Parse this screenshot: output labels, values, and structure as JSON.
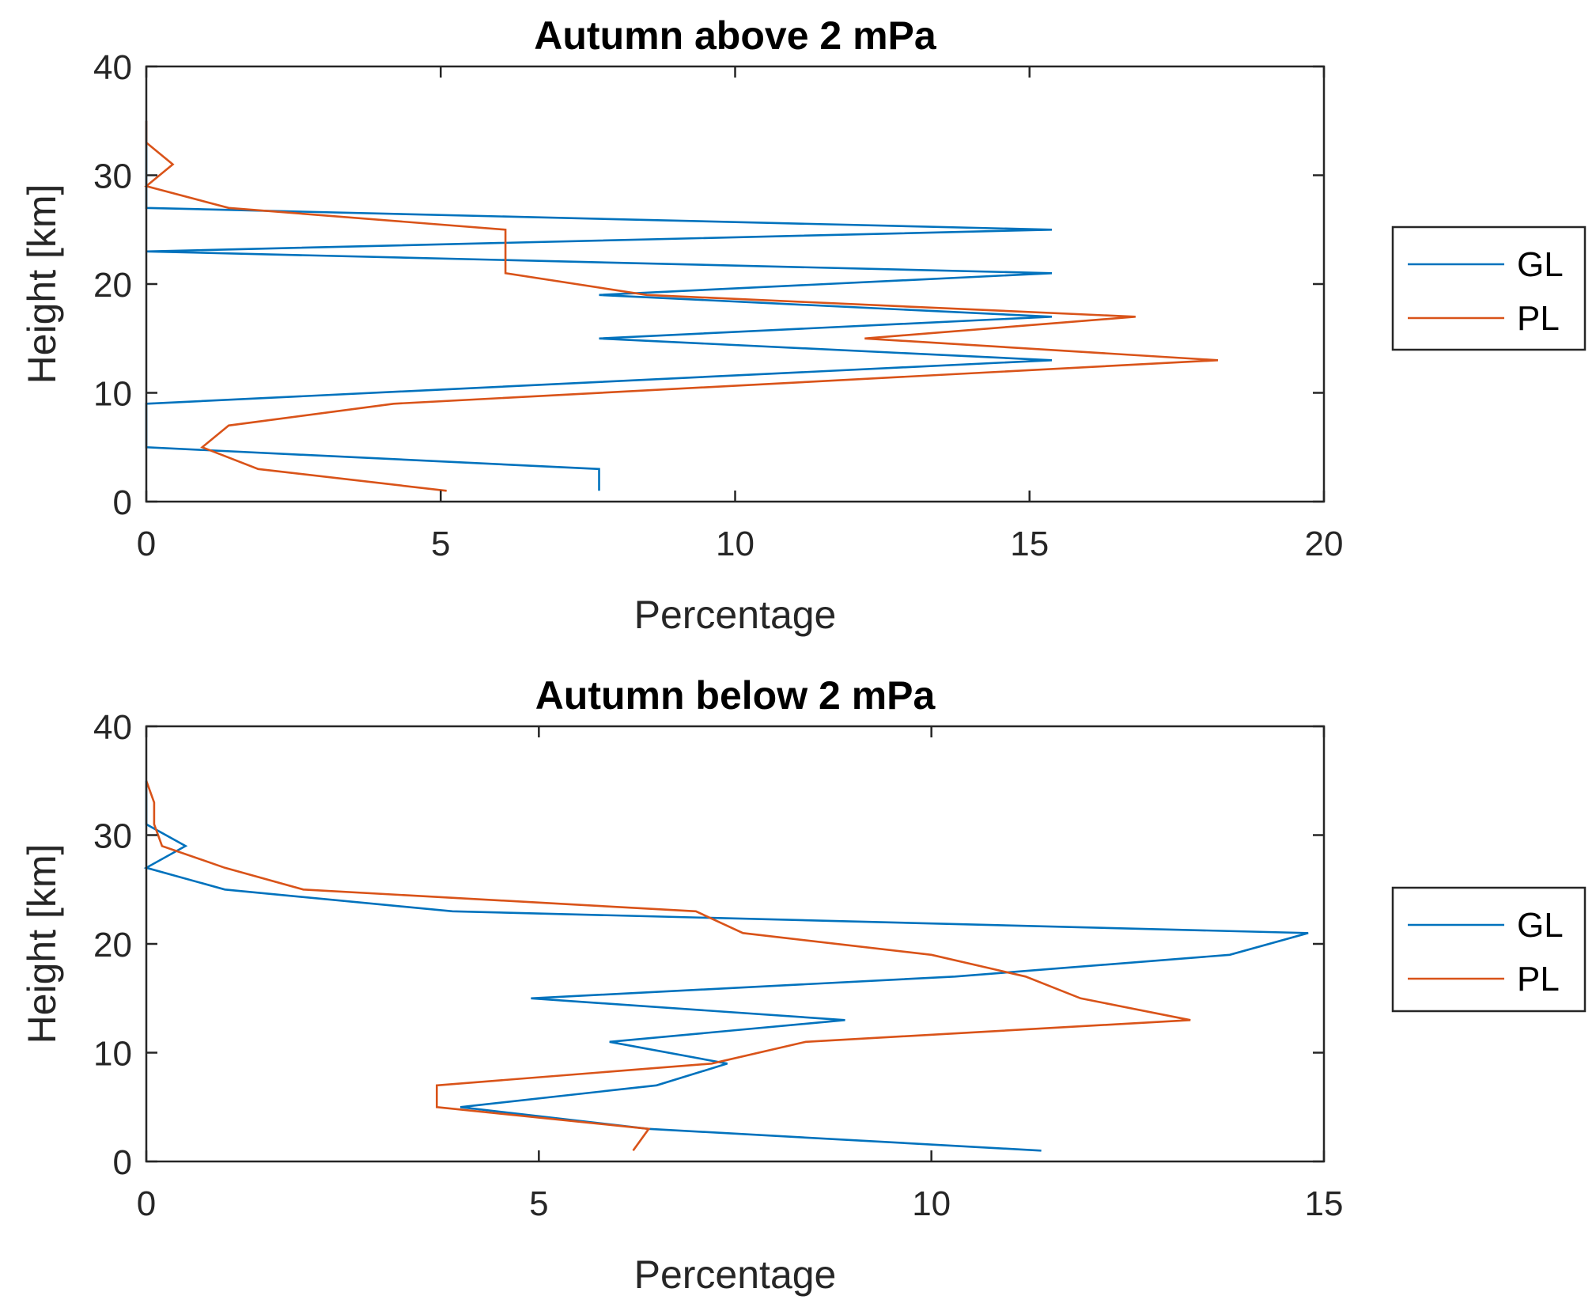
{
  "chart_data": [
    {
      "type": "line",
      "title": "Autumn above 2 mPa",
      "xlabel": "Percentage",
      "ylabel": "Height [km]",
      "xlim": [
        0,
        20
      ],
      "ylim": [
        0,
        40
      ],
      "xticks": [
        0,
        5,
        10,
        15,
        20
      ],
      "yticks": [
        0,
        10,
        20,
        30,
        40
      ],
      "grid": false,
      "legend": "outside-right",
      "series": [
        {
          "name": "GL",
          "color": "#0072BD",
          "x": [
            7.69,
            7.69,
            0,
            0,
            0,
            7.69,
            15.38,
            7.69,
            15.38,
            7.69,
            15.38,
            0,
            15.38,
            0,
            0,
            0,
            0,
            0
          ],
          "y": [
            1,
            3,
            5,
            7,
            9,
            11,
            13,
            15,
            17,
            19,
            21,
            23,
            25,
            27,
            29,
            31,
            33,
            35
          ]
        },
        {
          "name": "PL",
          "color": "#D95319",
          "x": [
            5.1,
            1.9,
            0.95,
            1.4,
            4.2,
            11.2,
            18.2,
            12.2,
            16.8,
            8.5,
            6.1,
            6.1,
            6.1,
            1.4,
            0,
            0.45,
            0,
            0
          ],
          "y": [
            1,
            3,
            5,
            7,
            9,
            11,
            13,
            15,
            17,
            19,
            21,
            23,
            25,
            27,
            29,
            31,
            33,
            35
          ]
        }
      ]
    },
    {
      "type": "line",
      "title": "Autumn below 2 mPa",
      "xlabel": "Percentage",
      "ylabel": "Height [km]",
      "xlim": [
        0,
        15
      ],
      "ylim": [
        0,
        40
      ],
      "xticks": [
        0,
        5,
        10,
        15
      ],
      "yticks": [
        0,
        10,
        20,
        30,
        40
      ],
      "grid": false,
      "legend": "outside-right",
      "series": [
        {
          "name": "GL",
          "color": "#0072BD",
          "x": [
            11.4,
            6.4,
            4.0,
            6.5,
            7.4,
            5.9,
            8.9,
            4.9,
            10.3,
            13.8,
            14.8,
            3.9,
            1.0,
            0,
            0.5,
            0,
            0,
            0
          ],
          "y": [
            1,
            3,
            5,
            7,
            9,
            11,
            13,
            15,
            17,
            19,
            21,
            23,
            25,
            27,
            29,
            31,
            33,
            35
          ]
        },
        {
          "name": "PL",
          "color": "#D95319",
          "x": [
            6.2,
            6.4,
            3.7,
            3.7,
            7.2,
            8.4,
            13.3,
            11.9,
            11.2,
            10.0,
            7.6,
            7.0,
            2.0,
            1.0,
            0.2,
            0.1,
            0.1,
            0
          ],
          "y": [
            1,
            3,
            5,
            7,
            9,
            11,
            13,
            15,
            17,
            19,
            21,
            23,
            25,
            27,
            29,
            31,
            33,
            35
          ]
        }
      ]
    }
  ]
}
